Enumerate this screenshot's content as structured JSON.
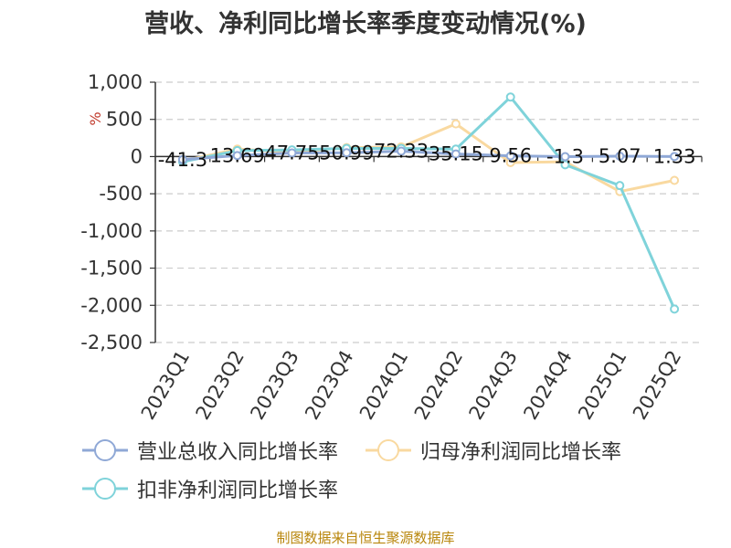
{
  "chart_data": {
    "type": "line",
    "title": "营收、净利同比增长率季度变动情况(%)",
    "ylabel": "%",
    "xlabel": "",
    "categories": [
      "2023Q1",
      "2023Q2",
      "2023Q3",
      "2023Q4",
      "2024Q1",
      "2024Q2",
      "2024Q3",
      "2024Q4",
      "2025Q1",
      "2025Q2"
    ],
    "ylim": [
      -2500,
      1000
    ],
    "yticks": [
      1000,
      500,
      0,
      -500,
      -1000,
      -1500,
      -2000,
      -2500
    ],
    "ytick_labels": [
      "1,000",
      "500",
      "0",
      "-500",
      "-1,000",
      "-1,500",
      "-2,000",
      "-2,500"
    ],
    "grid": true,
    "legend_position": "bottom",
    "series": [
      {
        "name": "营业总收入同比增长率",
        "color": "#8fa8d6",
        "values": [
          -41.3,
          13.69,
          47.75,
          50.99,
          72.33,
          35.15,
          9.56,
          -1.3,
          5.07,
          1.33
        ],
        "data_labels": [
          "-41.3",
          "13.69",
          "47.75",
          "50.99",
          "72.33",
          "35.15",
          "9.56",
          "-1.3",
          "5.07",
          "1.33"
        ]
      },
      {
        "name": "归母净利润同比增长率",
        "color": "#f9d9a0",
        "values": [
          -60,
          100,
          60,
          120,
          130,
          440,
          -80,
          -70,
          -470,
          -320
        ]
      },
      {
        "name": "扣非净利润同比增长率",
        "color": "#7fd3da",
        "values": [
          -70,
          80,
          90,
          110,
          110,
          100,
          800,
          -110,
          -390,
          -2050
        ]
      }
    ]
  },
  "source": "制图数据来自恒生聚源数据库"
}
